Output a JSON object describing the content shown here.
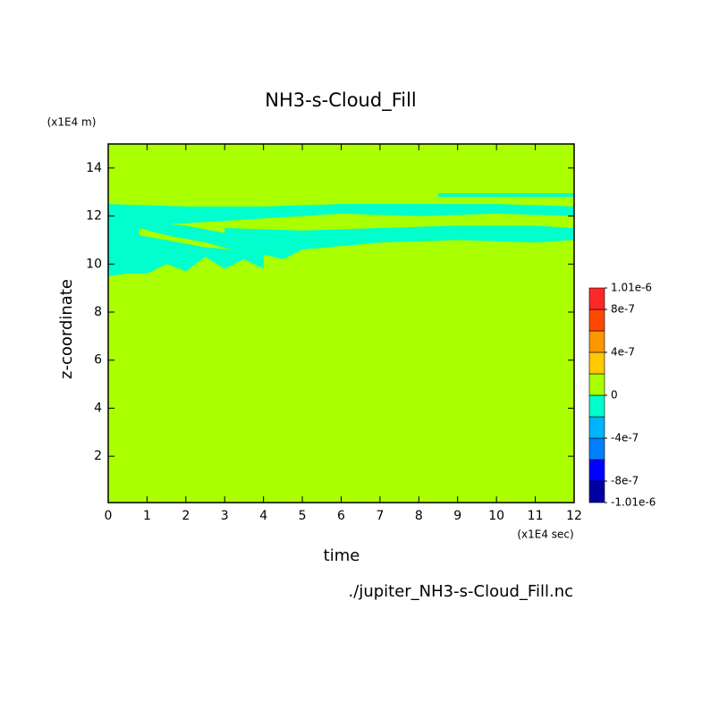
{
  "chart_data": {
    "type": "contour",
    "title": "NH3-s-Cloud_Fill",
    "y_unit": "(x1E4 m)",
    "x_unit": "(x1E4 sec)",
    "xlabel": "time",
    "ylabel": "z-coordinate",
    "source": "./jupiter_NH3-s-Cloud_Fill.nc",
    "xlim": [
      0,
      12
    ],
    "ylim": [
      0.07,
      15
    ],
    "xticks": [
      0,
      1,
      2,
      3,
      4,
      5,
      6,
      7,
      8,
      9,
      10,
      11,
      12
    ],
    "yticks": [
      2,
      4,
      6,
      8,
      10,
      12,
      14
    ],
    "levels": [
      -1.01e-06,
      -8e-07,
      -6e-07,
      -4e-07,
      -2e-07,
      0,
      2e-07,
      4e-07,
      6e-07,
      8e-07,
      1.01e-06
    ],
    "colors": [
      "#0000a0",
      "#0000ff",
      "#0080ff",
      "#00b4ff",
      "#00ffcc",
      "#aaff00",
      "#ffc800",
      "#ff9600",
      "#ff4800",
      "#ff2828"
    ],
    "colorbar_ticks": [
      {
        "value": 1.01e-06,
        "label": "1.01e-6"
      },
      8e-07,
      4e-07,
      0,
      -4e-07,
      -8e-07,
      {
        "value": -1.01e-06,
        "label": "-1.01e-6"
      }
    ],
    "background": [
      0,
      2e-07
    ],
    "patches": [
      {
        "range": [
          -2e-07,
          0
        ],
        "x": [
          0,
          2,
          4,
          6,
          8,
          10,
          12,
          12,
          10,
          8,
          6,
          4,
          2,
          0
        ],
        "y": [
          12.5,
          12.4,
          12.4,
          12.5,
          12.5,
          12.5,
          12.4,
          12.0,
          12.1,
          12.0,
          12.1,
          11.9,
          11.7,
          11.6
        ]
      },
      {
        "range": [
          -2e-07,
          0
        ],
        "x": [
          3,
          5,
          7,
          9,
          11,
          12,
          12,
          11,
          9,
          7,
          5,
          4.5,
          3
        ],
        "y": [
          11.5,
          11.4,
          11.5,
          11.6,
          11.6,
          11.5,
          11.0,
          10.9,
          11.0,
          10.9,
          10.6,
          10.2,
          10.8
        ]
      },
      {
        "range": [
          -2e-07,
          0
        ],
        "x": [
          0,
          1,
          2,
          3,
          3.5,
          4,
          4,
          3.5,
          3,
          2.5,
          2,
          1.5,
          1,
          0.5,
          0
        ],
        "y": [
          12.0,
          11.8,
          11.6,
          11.3,
          11.0,
          10.5,
          9.8,
          10.2,
          9.8,
          10.3,
          9.7,
          10.0,
          9.6,
          9.6,
          9.5
        ]
      },
      {
        "range": [
          0,
          2e-07
        ],
        "x": [
          0.8,
          1.5,
          2.5,
          3.2,
          2.5,
          1.5,
          0.8
        ],
        "y": [
          11.5,
          11.2,
          10.9,
          10.6,
          10.7,
          11.0,
          11.2
        ]
      },
      {
        "range": [
          -2e-07,
          0
        ],
        "x": [
          8.5,
          12,
          12,
          8.5
        ],
        "y": [
          12.95,
          12.95,
          12.8,
          12.8
        ]
      }
    ]
  }
}
